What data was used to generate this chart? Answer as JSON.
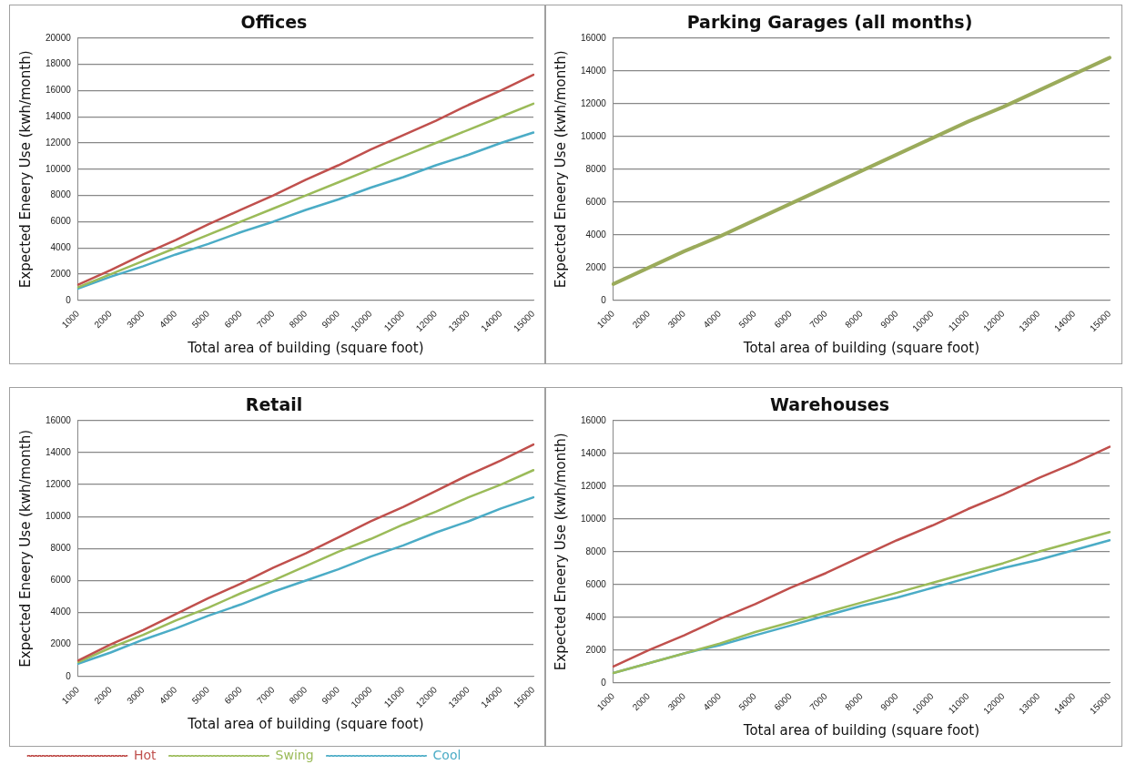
{
  "chart_data": [
    {
      "type": "line",
      "title": "Offices",
      "xlabel": "Total area of building (square foot)",
      "ylabel": "Expected Eneery Use (kwh/month)",
      "categories": [
        "1000",
        "2000",
        "3000",
        "4000",
        "5000",
        "6000",
        "7000",
        "8000",
        "9000",
        "10000",
        "11000",
        "12000",
        "13000",
        "14000",
        "15000"
      ],
      "series": [
        {
          "color": "#c0504d",
          "values": [
            1200,
            2300,
            3500,
            4600,
            5800,
            6900,
            8000,
            9200,
            10300,
            11500,
            12600,
            13700,
            14900,
            16000,
            17200
          ]
        },
        {
          "color": "#9bbb59",
          "values": [
            1000,
            2000,
            3000,
            4000,
            5000,
            6000,
            7000,
            8000,
            9000,
            10000,
            11000,
            12000,
            13000,
            14000,
            15000
          ]
        },
        {
          "color": "#4bacc6",
          "values": [
            900,
            1800,
            2600,
            3500,
            4300,
            5200,
            6000,
            6900,
            7700,
            8600,
            9400,
            10300,
            11100,
            12000,
            12800
          ]
        }
      ],
      "ylim": [
        0,
        20000
      ],
      "yticks": [
        0,
        2000,
        4000,
        6000,
        8000,
        10000,
        12000,
        14000,
        16000,
        18000,
        20000
      ],
      "grid": "y",
      "legend": false,
      "marker": "none",
      "line_style": "solid"
    },
    {
      "type": "line",
      "title": "Parking Garages (all months)",
      "xlabel": "Total area of building (square foot)",
      "ylabel": "Expected Eneery Use (kwh/month)",
      "categories": [
        "1000",
        "2000",
        "3000",
        "4000",
        "5000",
        "6000",
        "7000",
        "8000",
        "9000",
        "10000",
        "11000",
        "12000",
        "13000",
        "14000",
        "15000"
      ],
      "series": [
        {
          "color": "#9bab5b",
          "values": [
            1000,
            2000,
            3000,
            3900,
            4900,
            5900,
            6900,
            7900,
            8900,
            9900,
            10900,
            11800,
            12800,
            13800,
            14800
          ]
        }
      ],
      "ylim": [
        0,
        16000
      ],
      "yticks": [
        0,
        2000,
        4000,
        6000,
        8000,
        10000,
        12000,
        14000,
        16000
      ],
      "grid": "y",
      "legend": false,
      "marker": "none",
      "line_style": "solid"
    },
    {
      "type": "line",
      "title": "Retail",
      "xlabel": "Total area of building (square foot)",
      "ylabel": "Expected Eneery Use (kwh/month)",
      "categories": [
        "1000",
        "2000",
        "3000",
        "4000",
        "5000",
        "6000",
        "7000",
        "8000",
        "9000",
        "10000",
        "11000",
        "12000",
        "13000",
        "14000",
        "15000"
      ],
      "series": [
        {
          "name": "Hot",
          "color": "#c0504d",
          "values": [
            1000,
            2000,
            2900,
            3900,
            4900,
            5800,
            6800,
            7700,
            8700,
            9700,
            10600,
            11600,
            12600,
            13500,
            14500
          ]
        },
        {
          "name": "Swing",
          "color": "#9bbb59",
          "values": [
            900,
            1800,
            2600,
            3500,
            4300,
            5200,
            6000,
            6900,
            7800,
            8600,
            9500,
            10300,
            11200,
            12000,
            12900
          ]
        },
        {
          "name": "Cool",
          "color": "#4bacc6",
          "values": [
            800,
            1500,
            2300,
            3000,
            3800,
            4500,
            5300,
            6000,
            6700,
            7500,
            8200,
            9000,
            9700,
            10500,
            11200
          ]
        }
      ],
      "ylim": [
        0,
        16000
      ],
      "yticks": [
        0,
        2000,
        4000,
        6000,
        8000,
        10000,
        12000,
        14000,
        16000
      ],
      "grid": "y",
      "legend": "bottom",
      "marker": "none",
      "line_style": "solid"
    },
    {
      "type": "line",
      "title": "Warehouses",
      "xlabel": "Total area of building (square foot)",
      "ylabel": "Expected Eneery Use (kwh/month)",
      "categories": [
        "1000",
        "2000",
        "3000",
        "4000",
        "5000",
        "6000",
        "7000",
        "8000",
        "9000",
        "10000",
        "11000",
        "12000",
        "13000",
        "14000",
        "15000"
      ],
      "series": [
        {
          "color": "#c0504d",
          "values": [
            1000,
            2000,
            2900,
            3900,
            4800,
            5800,
            6700,
            7700,
            8700,
            9600,
            10600,
            11500,
            12500,
            13400,
            14400
          ]
        },
        {
          "color": "#9bbb59",
          "values": [
            600,
            1200,
            1800,
            2400,
            3100,
            3700,
            4300,
            4900,
            5500,
            6100,
            6700,
            7300,
            8000,
            8600,
            9200
          ]
        },
        {
          "color": "#4bacc6",
          "values": [
            600,
            1200,
            1800,
            2300,
            2900,
            3500,
            4100,
            4700,
            5200,
            5800,
            6400,
            7000,
            7500,
            8100,
            8700
          ]
        }
      ],
      "ylim": [
        0,
        16000
      ],
      "yticks": [
        0,
        2000,
        4000,
        6000,
        8000,
        10000,
        12000,
        14000,
        16000
      ],
      "grid": "y",
      "legend": false,
      "marker": "none",
      "line_style": "solid"
    }
  ]
}
